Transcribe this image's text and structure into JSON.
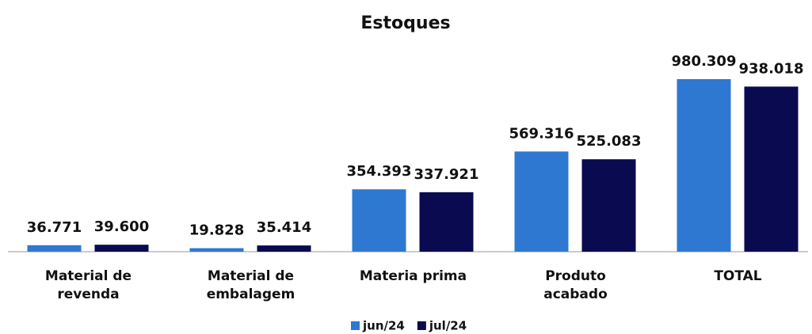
{
  "chart_data": {
    "type": "bar",
    "title": "Estoques",
    "categories": [
      "Material de revenda",
      "Material de embalagem",
      "Materia prima",
      "Produto acabado",
      "TOTAL"
    ],
    "series": [
      {
        "name": "jun/24",
        "color": "#2e78d2",
        "values": [
          36771,
          19828,
          354393,
          569316,
          980309
        ],
        "value_labels": [
          "36.771",
          "19.828",
          "354.393",
          "569.316",
          "980.309"
        ]
      },
      {
        "name": "jul/24",
        "color": "#0a0a50",
        "values": [
          39600,
          35414,
          337921,
          525083,
          938018
        ],
        "value_labels": [
          "39.600",
          "35.414",
          "337.921",
          "525.083",
          "938.018"
        ]
      }
    ],
    "legend": "bottom"
  }
}
